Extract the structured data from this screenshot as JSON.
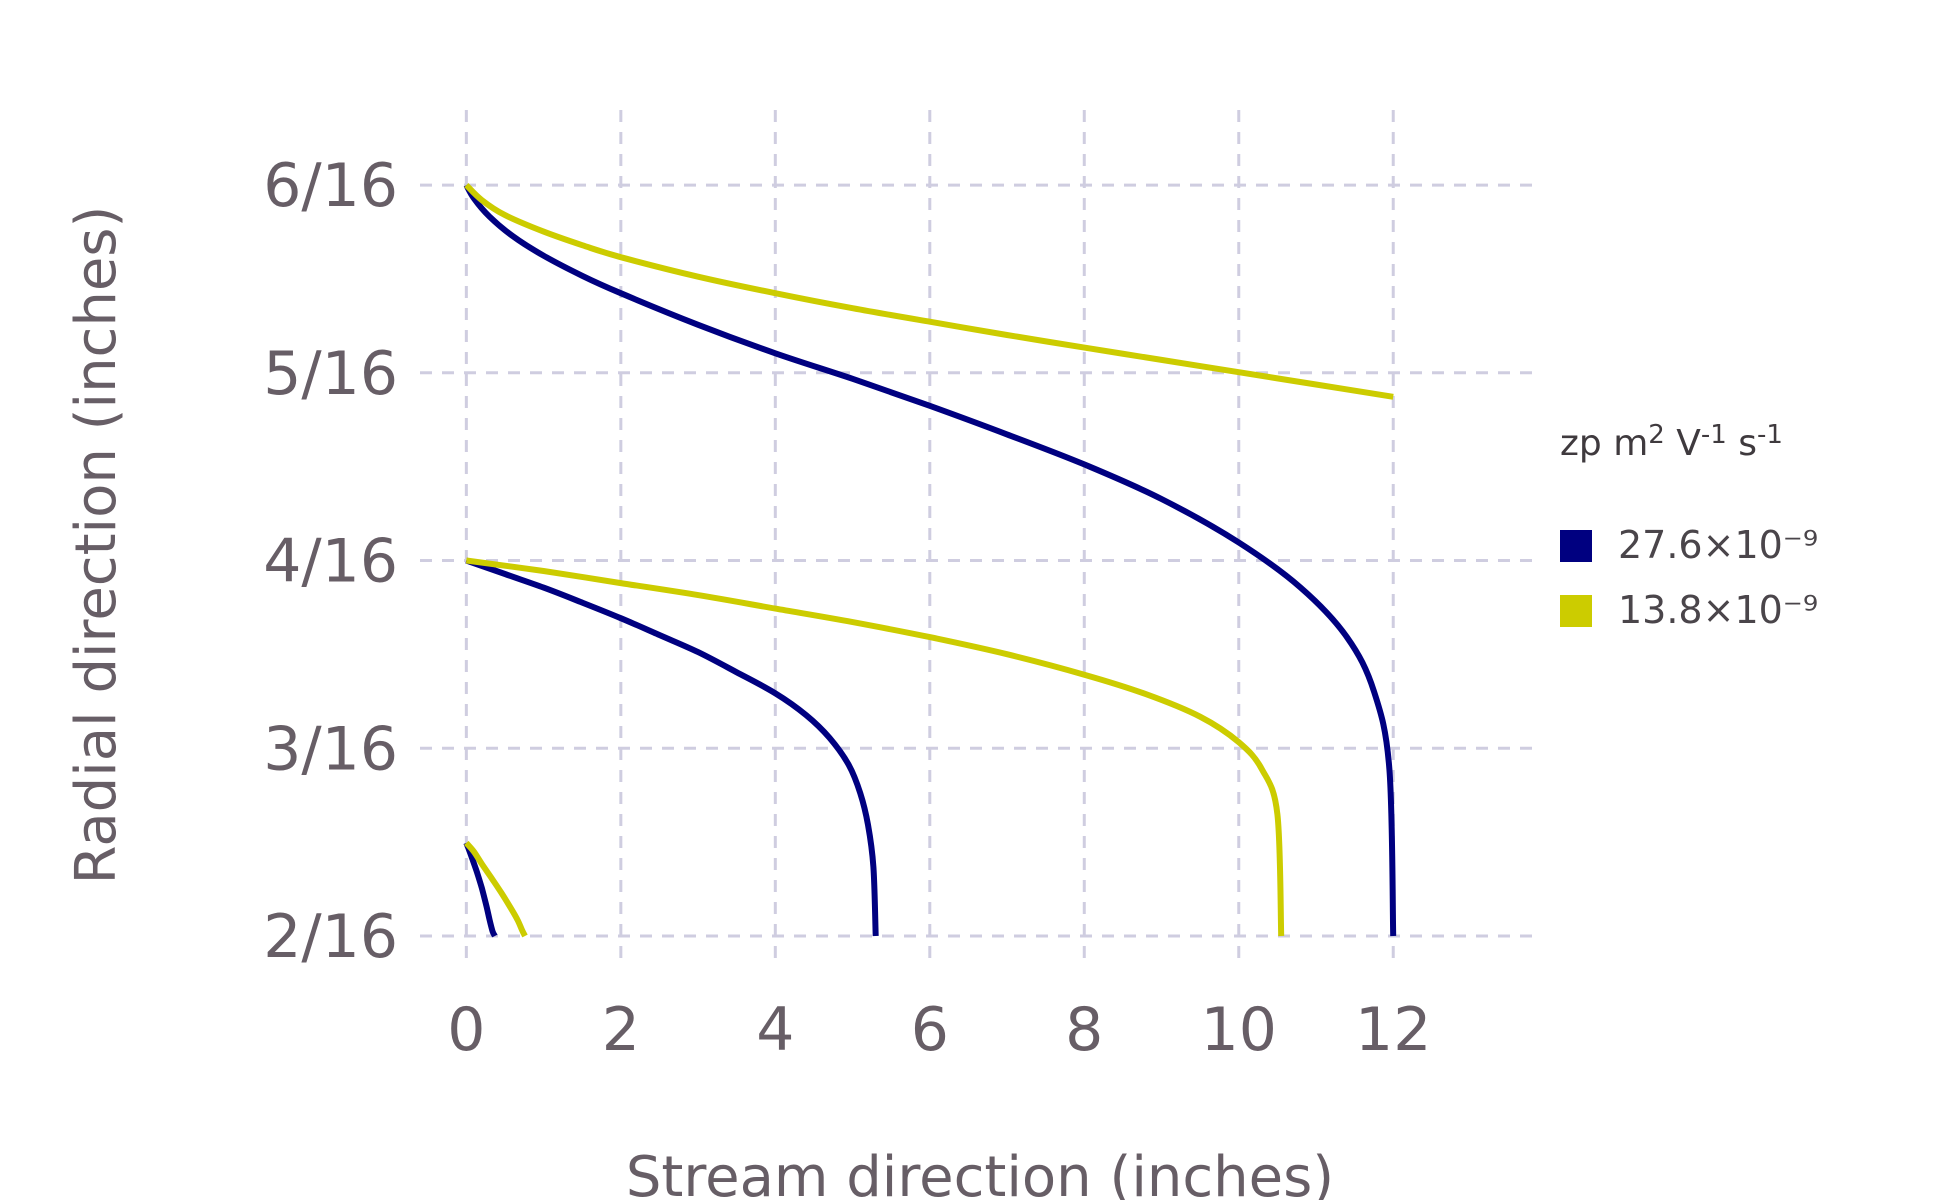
{
  "chart_data": {
    "type": "line",
    "title": "",
    "xlabel": "Stream direction (inches)",
    "ylabel": "Radial direction (inches)",
    "xlim": [
      -0.6,
      13.9
    ],
    "ylim": [
      0.117,
      0.4
    ],
    "xticks": [
      0,
      2,
      4,
      6,
      8,
      10,
      12
    ],
    "xtick_labels": [
      "0",
      "2",
      "4",
      "6",
      "8",
      "10",
      "12"
    ],
    "yticks": [
      0.125,
      0.1875,
      0.25,
      0.3125,
      0.375
    ],
    "ytick_labels": [
      "2/16",
      "3/16",
      "4/16",
      "5/16",
      "6/16"
    ],
    "grid": true,
    "legend": {
      "title": "zp m2 V-1 s-1",
      "title_parts": [
        "zp m",
        "2",
        " V",
        "-1",
        " s",
        "-1"
      ],
      "placement": "right",
      "entries": [
        {
          "label": "27.6×10⁻⁹",
          "color": "#000080"
        },
        {
          "label": "13.8×10⁻⁹",
          "color": "#cccc00"
        }
      ]
    },
    "series": [
      {
        "name": "27.6×10⁻⁹",
        "color": "#000080",
        "x": [
          0,
          0.03,
          0.08,
          0.14,
          0.2,
          0.26,
          0.3,
          0.34,
          0.37
        ],
        "y": [
          0.156,
          0.154,
          0.1505,
          0.146,
          0.141,
          0.135,
          0.1305,
          0.1265,
          0.125
        ]
      },
      {
        "name": "13.8×10⁻⁹",
        "color": "#cccc00",
        "x": [
          0,
          0.1,
          0.2,
          0.32,
          0.45,
          0.57,
          0.66,
          0.72,
          0.76
        ],
        "y": [
          0.156,
          0.153,
          0.149,
          0.1445,
          0.1395,
          0.1345,
          0.1305,
          0.127,
          0.125
        ]
      },
      {
        "name": "27.6×10⁻⁹",
        "color": "#000080",
        "x": [
          0,
          0.5,
          1.0,
          1.5,
          2.0,
          2.5,
          3.0,
          3.5,
          4.0,
          4.4,
          4.7,
          4.95,
          5.1,
          5.2,
          5.27,
          5.3
        ],
        "y": [
          0.25,
          0.2455,
          0.241,
          0.236,
          0.2308,
          0.2252,
          0.2195,
          0.2128,
          0.2058,
          0.1985,
          0.191,
          0.182,
          0.1725,
          0.162,
          0.148,
          0.125
        ]
      },
      {
        "name": "13.8×10⁻⁹",
        "color": "#cccc00",
        "x": [
          0,
          1,
          2,
          3,
          4,
          5,
          6,
          7,
          8,
          8.8,
          9.5,
          10.0,
          10.3,
          10.5,
          10.55
        ],
        "y": [
          0.25,
          0.2465,
          0.2425,
          0.2385,
          0.234,
          0.2295,
          0.2245,
          0.2188,
          0.212,
          0.2055,
          0.198,
          0.1895,
          0.1805,
          0.1655,
          0.125
        ]
      },
      {
        "name": "27.6×10⁻⁹",
        "color": "#000080",
        "x": [
          0,
          0.1,
          0.3,
          0.6,
          1.0,
          1.5,
          2.0,
          3.0,
          4.0,
          5.0,
          6.0,
          7.0,
          8.0,
          9.0,
          10.0,
          10.8,
          11.4,
          11.75,
          11.95,
          12.0
        ],
        "y": [
          0.375,
          0.3705,
          0.3645,
          0.358,
          0.3515,
          0.3448,
          0.339,
          0.3285,
          0.319,
          0.3105,
          0.3015,
          0.292,
          0.282,
          0.2705,
          0.256,
          0.241,
          0.2245,
          0.2065,
          0.1805,
          0.125
        ]
      },
      {
        "name": "13.8×10⁻⁹",
        "color": "#cccc00",
        "x": [
          0,
          0.2,
          0.5,
          1.0,
          1.5,
          2.0,
          3.0,
          4.0,
          5.0,
          6.0,
          7.0,
          8.0,
          9.0,
          10.0,
          11.0,
          12.0
        ],
        "y": [
          0.375,
          0.37,
          0.365,
          0.3595,
          0.355,
          0.351,
          0.3445,
          0.339,
          0.334,
          0.3295,
          0.3251,
          0.3209,
          0.3168,
          0.3127,
          0.3086,
          0.3045
        ]
      }
    ]
  }
}
